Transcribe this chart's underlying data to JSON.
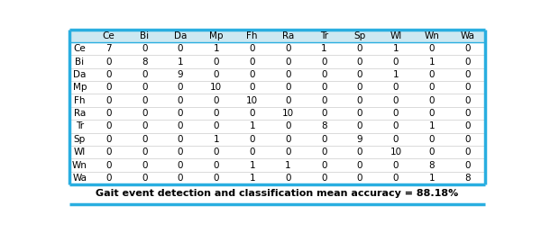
{
  "col_labels": [
    "",
    "Ce",
    "Bi",
    "Da",
    "Mp",
    "Fh",
    "Ra",
    "Tr",
    "Sp",
    "Wl",
    "Wn",
    "Wa"
  ],
  "row_labels": [
    "Ce",
    "Bi",
    "Da",
    "Mp",
    "Fh",
    "Ra",
    "Tr",
    "Sp",
    "Wl",
    "Wn",
    "Wa"
  ],
  "matrix": [
    [
      7,
      0,
      0,
      1,
      0,
      0,
      1,
      0,
      1,
      0,
      0
    ],
    [
      0,
      8,
      1,
      0,
      0,
      0,
      0,
      0,
      0,
      1,
      0
    ],
    [
      0,
      0,
      9,
      0,
      0,
      0,
      0,
      0,
      1,
      0,
      0
    ],
    [
      0,
      0,
      0,
      10,
      0,
      0,
      0,
      0,
      0,
      0,
      0
    ],
    [
      0,
      0,
      0,
      0,
      10,
      0,
      0,
      0,
      0,
      0,
      0
    ],
    [
      0,
      0,
      0,
      0,
      0,
      10,
      0,
      0,
      0,
      0,
      0
    ],
    [
      0,
      0,
      0,
      0,
      1,
      0,
      8,
      0,
      0,
      1,
      0
    ],
    [
      0,
      0,
      0,
      1,
      0,
      0,
      0,
      9,
      0,
      0,
      0
    ],
    [
      0,
      0,
      0,
      0,
      0,
      0,
      0,
      0,
      10,
      0,
      0
    ],
    [
      0,
      0,
      0,
      0,
      1,
      1,
      0,
      0,
      0,
      8,
      0
    ],
    [
      0,
      0,
      0,
      0,
      1,
      0,
      0,
      0,
      0,
      1,
      8
    ]
  ],
  "caption": "Gait event detection and classification mean accuracy = 88.18%",
  "header_bg": "#cde8f1",
  "cell_bg": "#ffffff",
  "border_color": "#29aee0",
  "divider_color": "#c0c0c0",
  "text_color": "#000000",
  "font_size": 7.5,
  "caption_font_size": 8.0,
  "fig_width": 6.0,
  "fig_height": 2.59,
  "dpi": 100
}
